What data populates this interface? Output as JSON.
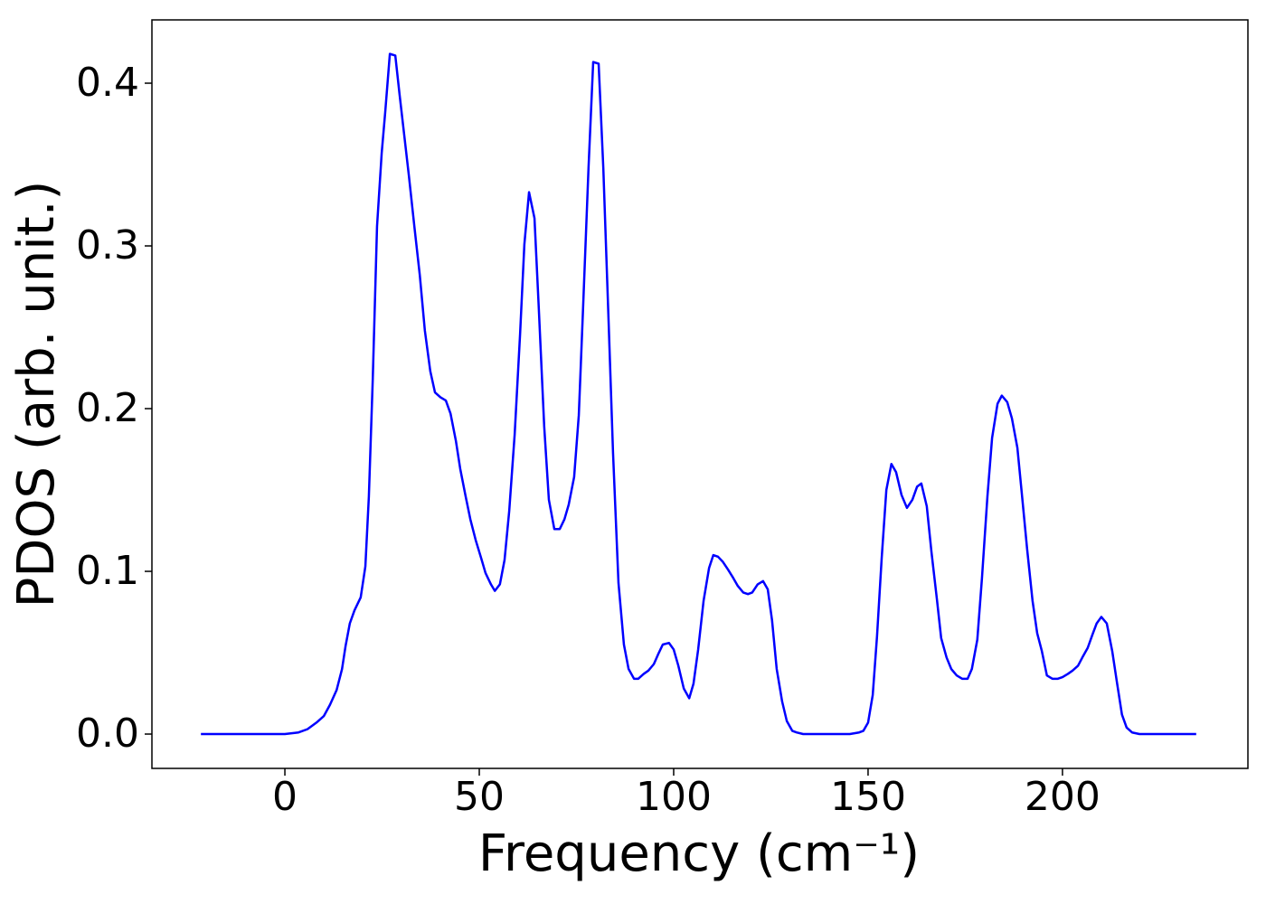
{
  "chart_data": {
    "type": "line",
    "x_label": "Frequency (cm⁻¹)",
    "y_label": "PDOS (arb. unit.)",
    "xlim": [
      -34.2,
      247.7
    ],
    "ylim": [
      -0.0211,
      0.4389
    ],
    "xticks": [
      0,
      50,
      100,
      150,
      200
    ],
    "yticks": [
      {
        "value": 0,
        "label": "0.0"
      },
      0.1,
      0.2,
      0.3,
      0.4
    ],
    "grid": false,
    "series": [
      {
        "name": "PDOS",
        "color": "#0000ff",
        "x": [
          -21.6,
          -10,
          0,
          3.5,
          5.8,
          8.1,
          10.0,
          11.6,
          13.3,
          14.7,
          15.6,
          16.7,
          17.9,
          19.5,
          20.7,
          21.6,
          22.6,
          23.7,
          24.9,
          25.8,
          27.0,
          28.4,
          29.5,
          30.7,
          31.9,
          33.3,
          34.7,
          36.0,
          37.4,
          38.6,
          40.0,
          41.4,
          42.6,
          44.0,
          45.1,
          46.5,
          47.7,
          49.1,
          50.5,
          51.6,
          53.0,
          54.0,
          55.3,
          56.5,
          57.7,
          59.1,
          60.5,
          61.6,
          62.8,
          64.2,
          65.3,
          66.7,
          67.9,
          69.3,
          70.7,
          71.9,
          73.0,
          74.4,
          75.6,
          76.7,
          78.1,
          79.3,
          80.7,
          81.9,
          83.3,
          84.4,
          85.8,
          87.2,
          88.4,
          89.8,
          90.9,
          92.3,
          93.5,
          94.9,
          96.0,
          97.2,
          98.8,
          100.0,
          101.2,
          102.6,
          104.0,
          105.1,
          106.3,
          107.7,
          109.1,
          110.2,
          111.4,
          112.6,
          114.0,
          115.3,
          116.5,
          117.9,
          119.1,
          120.2,
          121.6,
          123.0,
          124.2,
          125.3,
          126.5,
          127.9,
          129.1,
          130.5,
          131.6,
          133.3,
          145.3,
          147.7,
          148.8,
          150.0,
          151.2,
          152.3,
          153.5,
          154.7,
          156.0,
          157.2,
          158.6,
          160.0,
          161.4,
          162.6,
          163.7,
          165.1,
          166.3,
          167.7,
          168.8,
          170.2,
          171.4,
          172.8,
          174.2,
          175.6,
          176.7,
          178.1,
          179.3,
          180.7,
          181.9,
          183.3,
          184.4,
          185.8,
          187.0,
          188.4,
          189.5,
          190.9,
          192.3,
          193.5,
          194.7,
          196.0,
          197.4,
          198.8,
          200.0,
          201.4,
          202.6,
          204.0,
          205.1,
          206.5,
          207.7,
          208.8,
          210.0,
          211.4,
          212.8,
          214.0,
          215.3,
          216.5,
          217.9,
          219.8,
          234.4
        ],
        "values": [
          0,
          0,
          0,
          0.001,
          0.003,
          0.007,
          0.011,
          0.018,
          0.027,
          0.04,
          0.054,
          0.068,
          0.076,
          0.084,
          0.103,
          0.146,
          0.218,
          0.312,
          0.357,
          0.382,
          0.418,
          0.417,
          0.393,
          0.368,
          0.343,
          0.312,
          0.282,
          0.248,
          0.223,
          0.21,
          0.207,
          0.205,
          0.197,
          0.18,
          0.163,
          0.146,
          0.132,
          0.119,
          0.108,
          0.099,
          0.092,
          0.088,
          0.092,
          0.107,
          0.137,
          0.184,
          0.246,
          0.301,
          0.333,
          0.317,
          0.262,
          0.189,
          0.144,
          0.126,
          0.126,
          0.132,
          0.141,
          0.158,
          0.196,
          0.262,
          0.348,
          0.413,
          0.412,
          0.348,
          0.251,
          0.173,
          0.093,
          0.055,
          0.04,
          0.034,
          0.034,
          0.037,
          0.039,
          0.043,
          0.049,
          0.055,
          0.056,
          0.052,
          0.042,
          0.028,
          0.022,
          0.031,
          0.052,
          0.082,
          0.102,
          0.11,
          0.109,
          0.106,
          0.101,
          0.096,
          0.091,
          0.087,
          0.086,
          0.087,
          0.092,
          0.094,
          0.089,
          0.07,
          0.04,
          0.02,
          0.008,
          0.002,
          0.001,
          0,
          0,
          0.001,
          0.002,
          0.007,
          0.024,
          0.06,
          0.108,
          0.15,
          0.166,
          0.161,
          0.147,
          0.139,
          0.144,
          0.152,
          0.154,
          0.14,
          0.112,
          0.083,
          0.059,
          0.047,
          0.04,
          0.036,
          0.034,
          0.034,
          0.04,
          0.058,
          0.096,
          0.146,
          0.182,
          0.203,
          0.208,
          0.204,
          0.194,
          0.176,
          0.149,
          0.114,
          0.082,
          0.062,
          0.051,
          0.036,
          0.034,
          0.034,
          0.035,
          0.037,
          0.039,
          0.042,
          0.047,
          0.053,
          0.061,
          0.068,
          0.072,
          0.068,
          0.051,
          0.032,
          0.012,
          0.004,
          0.001,
          0,
          0
        ]
      }
    ]
  }
}
